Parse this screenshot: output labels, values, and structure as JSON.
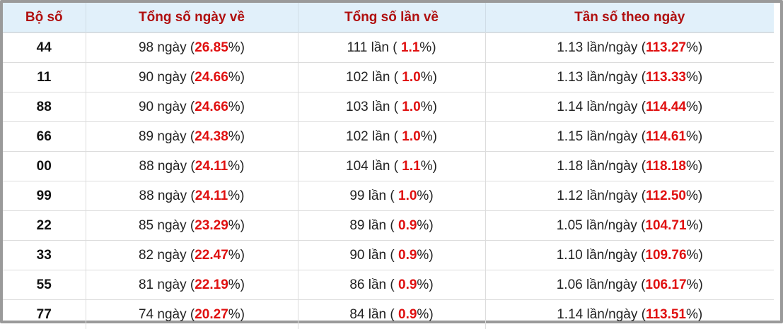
{
  "table": {
    "header": [
      "Bộ số",
      "Tổng số ngày về",
      "Tổng số lần về",
      "Tần số theo ngày"
    ],
    "rows": [
      [
        "44",
        [
          "98 ngày (",
          "26.85",
          "%)"
        ],
        [
          "111 lần ( ",
          "1.1",
          "%)"
        ],
        [
          "1.13 lần/ngày (",
          "113.27",
          "%)"
        ]
      ],
      [
        "11",
        [
          "90 ngày (",
          "24.66",
          "%)"
        ],
        [
          "102 lần ( ",
          "1.0",
          "%)"
        ],
        [
          "1.13 lần/ngày (",
          "113.33",
          "%)"
        ]
      ],
      [
        "88",
        [
          "90 ngày (",
          "24.66",
          "%)"
        ],
        [
          "103 lần ( ",
          "1.0",
          "%)"
        ],
        [
          "1.14 lần/ngày (",
          "114.44",
          "%)"
        ]
      ],
      [
        "66",
        [
          "89 ngày (",
          "24.38",
          "%)"
        ],
        [
          "102 lần ( ",
          "1.0",
          "%)"
        ],
        [
          "1.15 lần/ngày (",
          "114.61",
          "%)"
        ]
      ],
      [
        "00",
        [
          "88 ngày (",
          "24.11",
          "%)"
        ],
        [
          "104 lần ( ",
          "1.1",
          "%)"
        ],
        [
          "1.18 lần/ngày (",
          "118.18",
          "%)"
        ]
      ],
      [
        "99",
        [
          "88 ngày (",
          "24.11",
          "%)"
        ],
        [
          "99 lần ( ",
          "1.0",
          "%)"
        ],
        [
          "1.12 lần/ngày (",
          "112.50",
          "%)"
        ]
      ],
      [
        "22",
        [
          "85 ngày (",
          "23.29",
          "%)"
        ],
        [
          "89 lần ( ",
          "0.9",
          "%)"
        ],
        [
          "1.05 lần/ngày (",
          "104.71",
          "%)"
        ]
      ],
      [
        "33",
        [
          "82 ngày (",
          "22.47",
          "%)"
        ],
        [
          "90 lần ( ",
          "0.9",
          "%)"
        ],
        [
          "1.10 lần/ngày (",
          "109.76",
          "%)"
        ]
      ],
      [
        "55",
        [
          "81 ngày (",
          "22.19",
          "%)"
        ],
        [
          "86 lần ( ",
          "0.9",
          "%)"
        ],
        [
          "1.06 lần/ngày (",
          "106.17",
          "%)"
        ]
      ],
      [
        "77",
        [
          "74 ngày (",
          "20.27",
          "%)"
        ],
        [
          "84 lần ( ",
          "0.9",
          "%)"
        ],
        [
          "1.14 lần/ngày (",
          "113.51",
          "%)"
        ]
      ]
    ]
  }
}
